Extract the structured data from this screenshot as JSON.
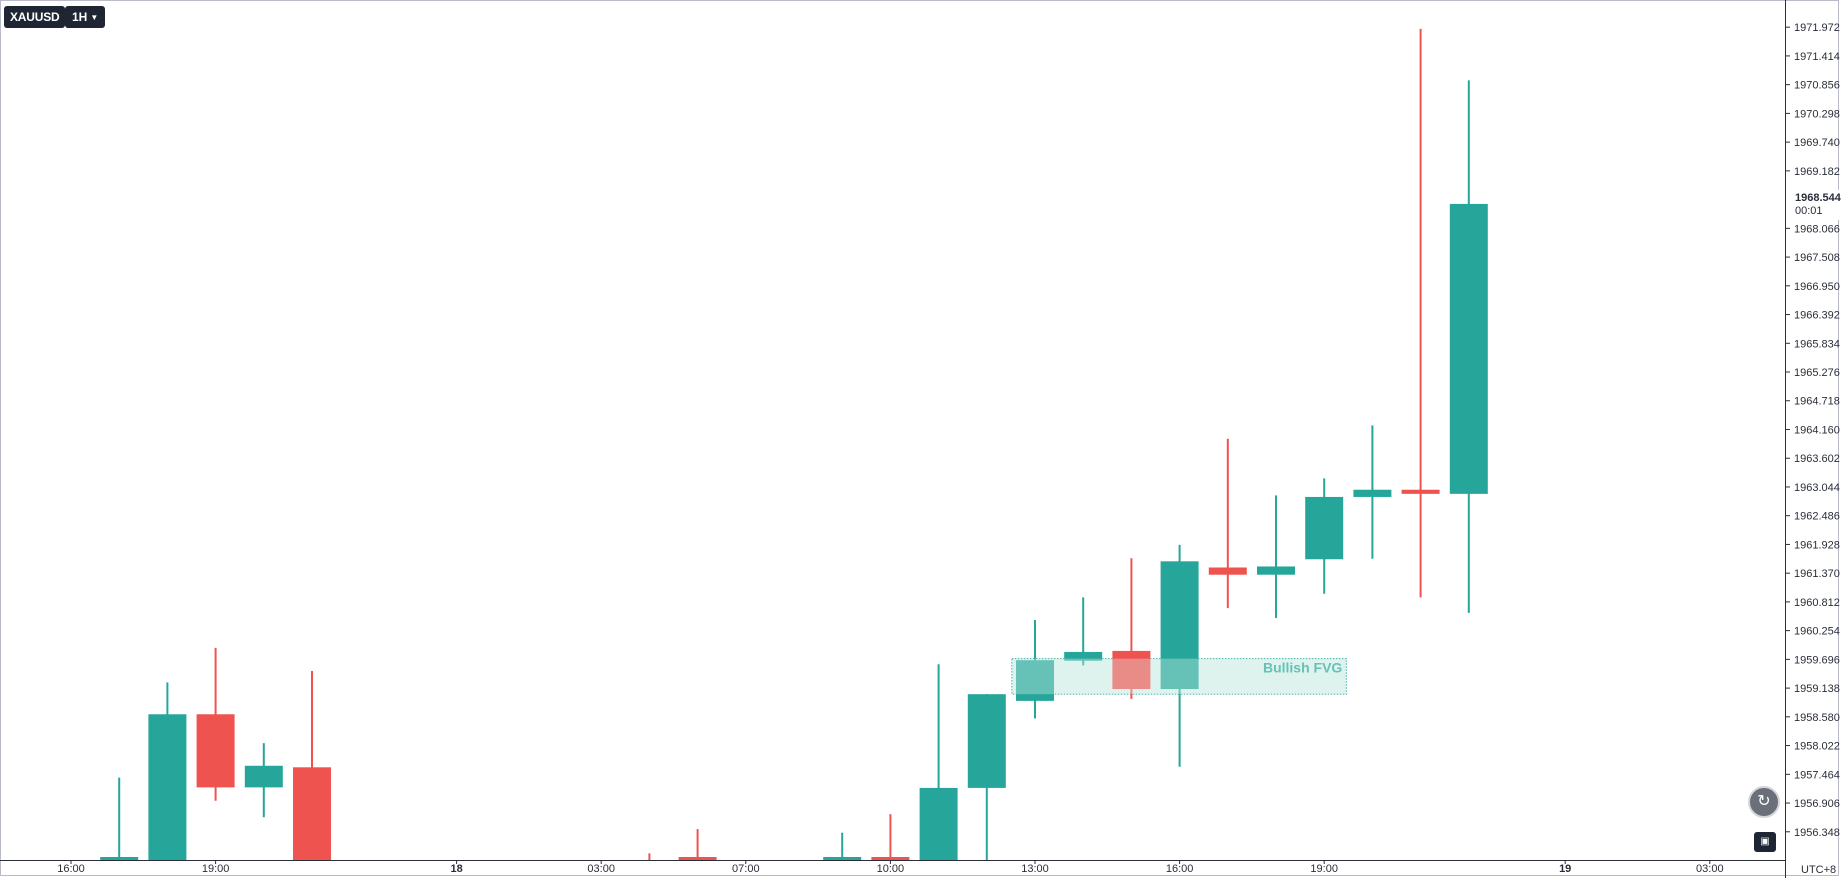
{
  "header": {
    "symbol": "XAUUSD",
    "interval": "1H",
    "interval_chevron_icon": "chevron-down-icon"
  },
  "price_axis": {
    "current_price_label": "1968.544",
    "countdown": "00:01",
    "timezone": "UTC+8"
  },
  "controls": {
    "reset_icon": "scroll-reset-icon",
    "auto_scale_icon": "auto-scale-icon"
  },
  "colors": {
    "up": "#26a69a",
    "down": "#ef5350",
    "fvg_fill": "#dff3ef",
    "fvg_border": "#26a69a",
    "fvg_text": "#26a69a"
  },
  "chart_data": {
    "type": "candlestick",
    "instrument": "XAUUSD",
    "interval": "1H",
    "ylim": [
      1955.9,
      1972.3
    ],
    "y_ticks": [
      "1971.972",
      "1971.414",
      "1970.856",
      "1970.298",
      "1969.740",
      "1969.182",
      "1968.066",
      "1967.508",
      "1966.950",
      "1966.392",
      "1965.834",
      "1965.276",
      "1964.718",
      "1964.160",
      "1963.602",
      "1963.044",
      "1962.486",
      "1961.928",
      "1961.370",
      "1960.812",
      "1960.254",
      "1959.696",
      "1959.138",
      "1958.580",
      "1958.022",
      "1957.464",
      "1956.906",
      "1956.348"
    ],
    "x_ticks": [
      {
        "label": "16:00",
        "slot": 0,
        "bold": false
      },
      {
        "label": "19:00",
        "slot": 3,
        "bold": false
      },
      {
        "label": "18",
        "slot": 8,
        "bold": true
      },
      {
        "label": "03:00",
        "slot": 11,
        "bold": false
      },
      {
        "label": "07:00",
        "slot": 14,
        "bold": false
      },
      {
        "label": "10:00",
        "slot": 17,
        "bold": false
      },
      {
        "label": "13:00",
        "slot": 20,
        "bold": false
      },
      {
        "label": "16:00",
        "slot": 23,
        "bold": false
      },
      {
        "label": "19:00",
        "slot": 26,
        "bold": false
      },
      {
        "label": "19",
        "slot": 31,
        "bold": true
      },
      {
        "label": "03:00",
        "slot": 34,
        "bold": false
      }
    ],
    "candles": [
      {
        "slot": 1,
        "open": 1955.8,
        "high": 1957.4,
        "low": 1955.8,
        "close": 1955.85
      },
      {
        "slot": 2,
        "open": 1955.8,
        "high": 1959.25,
        "low": 1955.8,
        "close": 1958.63
      },
      {
        "slot": 3,
        "open": 1958.63,
        "high": 1959.92,
        "low": 1956.95,
        "close": 1957.21
      },
      {
        "slot": 4,
        "open": 1957.21,
        "high": 1958.07,
        "low": 1956.63,
        "close": 1957.63
      },
      {
        "slot": 5,
        "open": 1957.6,
        "high": 1959.47,
        "low": 1955.8,
        "close": 1955.8
      },
      {
        "slot": 12,
        "open": 1955.88,
        "high": 1955.93,
        "low": 1955.8,
        "close": 1955.85
      },
      {
        "slot": 13,
        "open": 1955.85,
        "high": 1956.4,
        "low": 1955.8,
        "close": 1955.82
      },
      {
        "slot": 16,
        "open": 1955.8,
        "high": 1956.33,
        "low": 1955.8,
        "close": 1955.82
      },
      {
        "slot": 17,
        "open": 1955.85,
        "high": 1956.69,
        "low": 1955.8,
        "close": 1955.82
      },
      {
        "slot": 18,
        "open": 1955.8,
        "high": 1959.6,
        "low": 1955.8,
        "close": 1957.2
      },
      {
        "slot": 19,
        "open": 1957.2,
        "high": 1959.02,
        "low": 1955.8,
        "close": 1959.02
      },
      {
        "slot": 20,
        "open": 1958.89,
        "high": 1960.46,
        "low": 1958.55,
        "close": 1959.68
      },
      {
        "slot": 21,
        "open": 1959.67,
        "high": 1960.9,
        "low": 1959.58,
        "close": 1959.84
      },
      {
        "slot": 22,
        "open": 1959.86,
        "high": 1961.66,
        "low": 1958.93,
        "close": 1959.12
      },
      {
        "slot": 23,
        "open": 1959.12,
        "high": 1961.92,
        "low": 1957.61,
        "close": 1961.6
      },
      {
        "slot": 24,
        "open": 1961.48,
        "high": 1963.98,
        "low": 1960.69,
        "close": 1961.34
      },
      {
        "slot": 25,
        "open": 1961.34,
        "high": 1962.88,
        "low": 1960.5,
        "close": 1961.5
      },
      {
        "slot": 26,
        "open": 1961.64,
        "high": 1963.21,
        "low": 1960.97,
        "close": 1962.85
      },
      {
        "slot": 27,
        "open": 1962.85,
        "high": 1964.24,
        "low": 1961.65,
        "close": 1962.99
      },
      {
        "slot": 28,
        "open": 1962.99,
        "high": 1971.94,
        "low": 1960.9,
        "close": 1962.91
      },
      {
        "slot": 29,
        "open": 1962.91,
        "high": 1970.94,
        "low": 1960.6,
        "close": 1968.54
      }
    ],
    "annotations": [
      {
        "type": "zone",
        "label": "Bullish FVG",
        "slot_start": 20,
        "slot_end": 26,
        "price_low": 1959.02,
        "price_high": 1959.71
      }
    ]
  }
}
